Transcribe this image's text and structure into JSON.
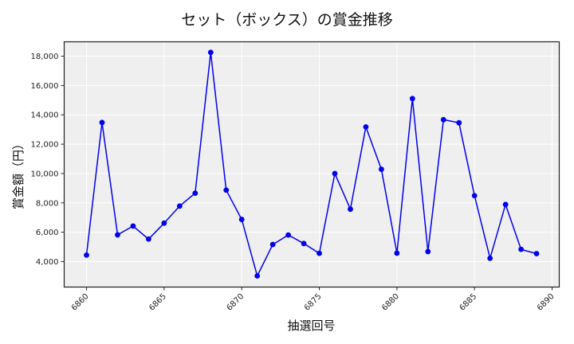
{
  "chart_data": {
    "type": "line",
    "title": "セット（ボックス）の賞金推移",
    "xlabel": "抽選回号",
    "ylabel": "賞金額（円）",
    "x": [
      6860,
      6861,
      6862,
      6863,
      6864,
      6865,
      6866,
      6867,
      6868,
      6869,
      6870,
      6871,
      6872,
      6873,
      6874,
      6875,
      6876,
      6877,
      6878,
      6879,
      6880,
      6881,
      6882,
      6883,
      6884,
      6885,
      6886,
      6887,
      6888,
      6889
    ],
    "series": [
      {
        "name": "賞金額",
        "color": "#0000ee",
        "values": [
          4440,
          13480,
          5820,
          6420,
          5530,
          6620,
          7780,
          8660,
          18260,
          8870,
          6870,
          3020,
          5160,
          5810,
          5230,
          4560,
          10000,
          7570,
          13180,
          10290,
          4570,
          15110,
          4680,
          13670,
          13460,
          8490,
          4220,
          7890,
          4830,
          4540
        ]
      }
    ],
    "xticks": [
      6860,
      6865,
      6870,
      6875,
      6880,
      6885,
      6890
    ],
    "yticks": [
      4000,
      6000,
      8000,
      10000,
      12000,
      14000,
      16000,
      18000
    ],
    "ytick_labels": [
      "4,000",
      "6,000",
      "8,000",
      "10,000",
      "12,000",
      "14,000",
      "16,000",
      "18,000"
    ],
    "xlim": [
      6858.56,
      6890.46
    ],
    "ylim": [
      2260,
      18980
    ],
    "grid": true,
    "legend": null,
    "background_color": "#efefef",
    "line_color": "#0000ee"
  }
}
